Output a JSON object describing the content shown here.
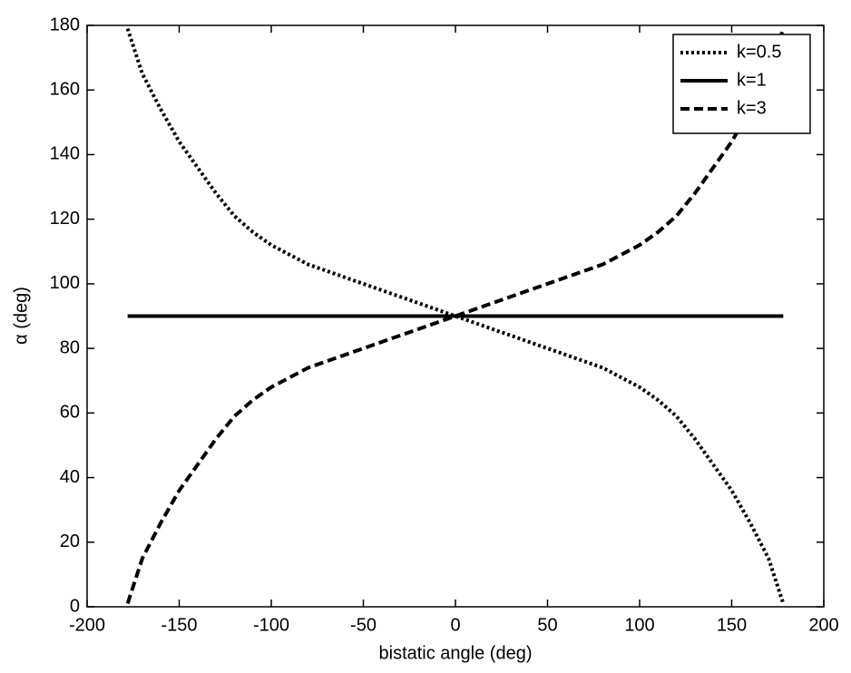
{
  "chart_data": {
    "type": "line",
    "x_label": "bistatic angle (deg)",
    "y_label": "α (deg)",
    "x": [
      -178,
      -170,
      -160,
      -150,
      -140,
      -130,
      -120,
      -110,
      -100,
      -90,
      -80,
      -70,
      -60,
      -50,
      -40,
      -30,
      -20,
      -10,
      0,
      10,
      20,
      30,
      40,
      50,
      60,
      70,
      80,
      90,
      100,
      110,
      120,
      130,
      140,
      150,
      160,
      170,
      178
    ],
    "series": [
      {
        "name": "k=0.5",
        "color": "#000000",
        "style": "dotted",
        "values": [
          179,
          165,
          154,
          144,
          136,
          128,
          121,
          116,
          112,
          109,
          106,
          104,
          102,
          100,
          98,
          96,
          94,
          92,
          90,
          88,
          86,
          84,
          82,
          80,
          78,
          76,
          74,
          71,
          68,
          64,
          59,
          52,
          44,
          36,
          26,
          15,
          1
        ]
      },
      {
        "name": "k=1",
        "color": "#000000",
        "style": "solid",
        "values": [
          90,
          90,
          90,
          90,
          90,
          90,
          90,
          90,
          90,
          90,
          90,
          90,
          90,
          90,
          90,
          90,
          90,
          90,
          90,
          90,
          90,
          90,
          90,
          90,
          90,
          90,
          90,
          90,
          90,
          90,
          90,
          90,
          90,
          90,
          90,
          90,
          90
        ]
      },
      {
        "name": "k=3",
        "color": "#000000",
        "style": "dashed",
        "values": [
          1,
          15,
          26,
          36,
          44,
          52,
          59,
          64,
          68,
          71,
          74,
          76,
          78,
          80,
          82,
          84,
          86,
          88,
          90,
          92,
          94,
          96,
          98,
          100,
          102,
          104,
          106,
          109,
          112,
          116,
          121,
          128,
          136,
          144,
          154,
          165,
          179
        ]
      }
    ],
    "xlim": [
      -200,
      200
    ],
    "xticks": [
      -200,
      -150,
      -100,
      -50,
      0,
      50,
      100,
      150,
      200
    ],
    "ylim": [
      0,
      180
    ],
    "yticks": [
      0,
      20,
      40,
      60,
      80,
      100,
      120,
      140,
      160,
      180
    ],
    "legend": "upper right"
  }
}
